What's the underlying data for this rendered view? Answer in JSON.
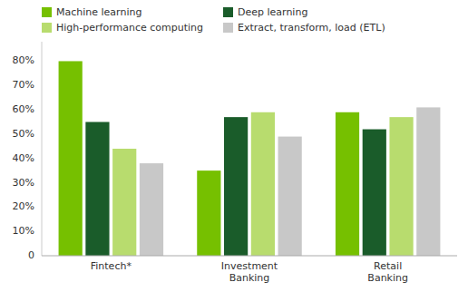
{
  "chart_data": {
    "type": "bar",
    "categories": [
      "Fintech*",
      "Investment\nBanking",
      "Retail\nBanking"
    ],
    "series": [
      {
        "name": "Machine learning",
        "color": "#76c000",
        "values": [
          80,
          35,
          59
        ]
      },
      {
        "name": "Deep learning",
        "color": "#1a5c2a",
        "values": [
          55,
          57,
          52
        ]
      },
      {
        "name": "High-performance computing",
        "color": "#b8dc6e",
        "values": [
          44,
          59,
          57
        ]
      },
      {
        "name": "Extract, transform, load (ETL)",
        "color": "#c8c8c8",
        "values": [
          38,
          49,
          61
        ]
      }
    ],
    "ylim": [
      0,
      88
    ],
    "yticks": [
      0,
      {
        "value": 10,
        "label": "10%"
      },
      {
        "value": 20,
        "label": "20%"
      },
      {
        "value": 30,
        "label": "30%"
      },
      {
        "value": 40,
        "label": "40%"
      },
      {
        "value": 50,
        "label": "50%"
      },
      {
        "value": 60,
        "label": "60%"
      },
      {
        "value": 70,
        "label": "70%"
      },
      {
        "value": 80,
        "label": "80%"
      }
    ],
    "grid": false,
    "legend": "upper left"
  }
}
